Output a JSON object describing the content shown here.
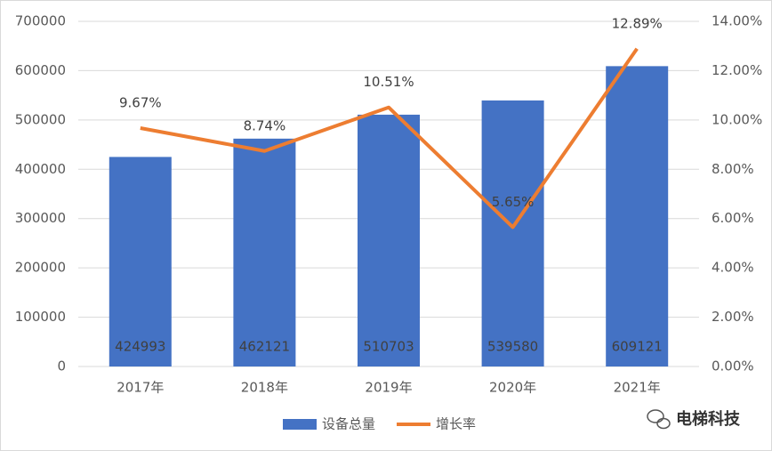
{
  "chart_data": {
    "type": "bar",
    "categories": [
      "2017年",
      "2018年",
      "2019年",
      "2020年",
      "2021年"
    ],
    "series": [
      {
        "name": "设备总量",
        "type": "bar",
        "color": "#4472c4",
        "values": [
          424993,
          462121,
          510703,
          539580,
          609121
        ]
      },
      {
        "name": "增长率",
        "type": "line",
        "axis": "y2",
        "color": "#ed7d31",
        "values": [
          9.67,
          8.74,
          10.51,
          5.65,
          12.89
        ],
        "value_labels": [
          "9.67%",
          "8.74%",
          "10.51%",
          "5.65%",
          "12.89%"
        ]
      }
    ],
    "ylim": [
      0,
      700000
    ],
    "yticks": [
      0,
      100000,
      200000,
      300000,
      400000,
      500000,
      600000,
      700000
    ],
    "y2lim": [
      0,
      14
    ],
    "y2ticks": [
      {
        "value": 0,
        "label": "0.00%"
      },
      {
        "value": 2,
        "label": "2.00%"
      },
      {
        "value": 4,
        "label": "4.00%"
      },
      {
        "value": 6,
        "label": "6.00%"
      },
      {
        "value": 8,
        "label": "8.00%"
      },
      {
        "value": 10,
        "label": "10.00%"
      },
      {
        "value": 12,
        "label": "12.00%"
      },
      {
        "value": 14,
        "label": "14.00%"
      }
    ],
    "grid": true,
    "legend": "bottom"
  },
  "watermark": "电梯科技"
}
